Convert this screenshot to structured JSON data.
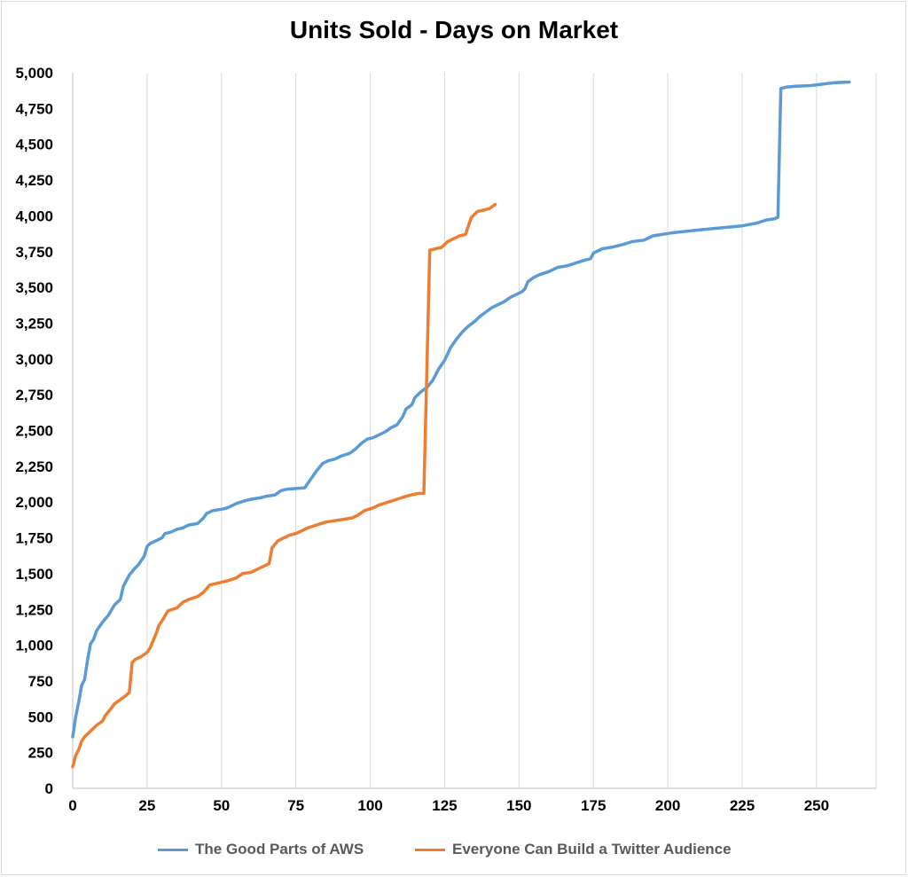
{
  "chart_data": {
    "type": "line",
    "title": "Units Sold - Days on Market",
    "xlabel": "",
    "ylabel": "",
    "xlim": [
      0,
      270
    ],
    "ylim": [
      0,
      5000
    ],
    "x_ticks": [
      "0",
      "25",
      "50",
      "75",
      "100",
      "125",
      "150",
      "175",
      "200",
      "225",
      "250"
    ],
    "y_ticks": [
      "0",
      "250",
      "500",
      "750",
      "1,000",
      "1,250",
      "1,500",
      "1,750",
      "2,000",
      "2,250",
      "2,500",
      "2,750",
      "3,000",
      "3,250",
      "3,500",
      "3,750",
      "4,000",
      "4,250",
      "4,500",
      "4,750",
      "5,000"
    ],
    "grid": "vertical",
    "legend": "bottom",
    "series": [
      {
        "name": "The Good Parts of AWS",
        "color": "#5b9bd5",
        "points": [
          [
            0,
            360
          ],
          [
            1,
            500
          ],
          [
            2,
            600
          ],
          [
            3,
            720
          ],
          [
            4,
            760
          ],
          [
            5,
            900
          ],
          [
            6,
            1010
          ],
          [
            7,
            1040
          ],
          [
            8,
            1100
          ],
          [
            10,
            1160
          ],
          [
            12,
            1210
          ],
          [
            14,
            1280
          ],
          [
            16,
            1320
          ],
          [
            17,
            1410
          ],
          [
            19,
            1490
          ],
          [
            21,
            1540
          ],
          [
            22,
            1560
          ],
          [
            24,
            1620
          ],
          [
            25,
            1690
          ],
          [
            26,
            1710
          ],
          [
            28,
            1730
          ],
          [
            30,
            1750
          ],
          [
            31,
            1780
          ],
          [
            33,
            1790
          ],
          [
            35,
            1810
          ],
          [
            37,
            1820
          ],
          [
            39,
            1840
          ],
          [
            42,
            1850
          ],
          [
            44,
            1890
          ],
          [
            45,
            1920
          ],
          [
            47,
            1940
          ],
          [
            50,
            1950
          ],
          [
            52,
            1960
          ],
          [
            55,
            1990
          ],
          [
            58,
            2010
          ],
          [
            60,
            2020
          ],
          [
            63,
            2030
          ],
          [
            65,
            2040
          ],
          [
            68,
            2050
          ],
          [
            70,
            2080
          ],
          [
            72,
            2090
          ],
          [
            75,
            2095
          ],
          [
            78,
            2100
          ],
          [
            80,
            2160
          ],
          [
            82,
            2220
          ],
          [
            84,
            2270
          ],
          [
            86,
            2290
          ],
          [
            88,
            2300
          ],
          [
            90,
            2320
          ],
          [
            93,
            2340
          ],
          [
            95,
            2370
          ],
          [
            97,
            2410
          ],
          [
            99,
            2440
          ],
          [
            101,
            2450
          ],
          [
            103,
            2470
          ],
          [
            105,
            2490
          ],
          [
            107,
            2520
          ],
          [
            109,
            2540
          ],
          [
            111,
            2600
          ],
          [
            112,
            2650
          ],
          [
            114,
            2680
          ],
          [
            115,
            2730
          ],
          [
            117,
            2770
          ],
          [
            119,
            2800
          ],
          [
            121,
            2850
          ],
          [
            123,
            2930
          ],
          [
            125,
            2990
          ],
          [
            127,
            3080
          ],
          [
            129,
            3140
          ],
          [
            131,
            3190
          ],
          [
            133,
            3230
          ],
          [
            135,
            3260
          ],
          [
            137,
            3300
          ],
          [
            139,
            3330
          ],
          [
            141,
            3360
          ],
          [
            143,
            3380
          ],
          [
            145,
            3400
          ],
          [
            147,
            3430
          ],
          [
            149,
            3450
          ],
          [
            151,
            3470
          ],
          [
            152,
            3490
          ],
          [
            153,
            3540
          ],
          [
            155,
            3570
          ],
          [
            157,
            3590
          ],
          [
            160,
            3610
          ],
          [
            163,
            3640
          ],
          [
            166,
            3650
          ],
          [
            169,
            3670
          ],
          [
            172,
            3690
          ],
          [
            174,
            3700
          ],
          [
            175,
            3740
          ],
          [
            178,
            3770
          ],
          [
            181,
            3780
          ],
          [
            185,
            3800
          ],
          [
            188,
            3820
          ],
          [
            192,
            3830
          ],
          [
            195,
            3860
          ],
          [
            198,
            3870
          ],
          [
            201,
            3880
          ],
          [
            205,
            3890
          ],
          [
            210,
            3900
          ],
          [
            215,
            3910
          ],
          [
            220,
            3920
          ],
          [
            225,
            3930
          ],
          [
            230,
            3950
          ],
          [
            233,
            3970
          ],
          [
            236,
            3980
          ],
          [
            237,
            3990
          ],
          [
            238,
            4890
          ],
          [
            240,
            4900
          ],
          [
            243,
            4905
          ],
          [
            248,
            4910
          ],
          [
            252,
            4920
          ],
          [
            256,
            4930
          ],
          [
            261,
            4935
          ]
        ]
      },
      {
        "name": "Everyone Can Build a Twitter Audience",
        "color": "#ed7d31",
        "points": [
          [
            0,
            150
          ],
          [
            1,
            230
          ],
          [
            2,
            270
          ],
          [
            3,
            330
          ],
          [
            4,
            360
          ],
          [
            6,
            400
          ],
          [
            8,
            440
          ],
          [
            10,
            470
          ],
          [
            11,
            510
          ],
          [
            13,
            560
          ],
          [
            14,
            590
          ],
          [
            16,
            620
          ],
          [
            18,
            650
          ],
          [
            19,
            670
          ],
          [
            20,
            880
          ],
          [
            21,
            900
          ],
          [
            23,
            920
          ],
          [
            25,
            950
          ],
          [
            26,
            980
          ],
          [
            28,
            1080
          ],
          [
            29,
            1140
          ],
          [
            30,
            1170
          ],
          [
            32,
            1240
          ],
          [
            35,
            1260
          ],
          [
            37,
            1300
          ],
          [
            39,
            1320
          ],
          [
            42,
            1340
          ],
          [
            44,
            1370
          ],
          [
            46,
            1420
          ],
          [
            48,
            1430
          ],
          [
            50,
            1440
          ],
          [
            52,
            1450
          ],
          [
            55,
            1470
          ],
          [
            57,
            1500
          ],
          [
            60,
            1510
          ],
          [
            63,
            1540
          ],
          [
            66,
            1570
          ],
          [
            67,
            1680
          ],
          [
            69,
            1730
          ],
          [
            71,
            1750
          ],
          [
            73,
            1770
          ],
          [
            75,
            1780
          ],
          [
            77,
            1800
          ],
          [
            79,
            1820
          ],
          [
            82,
            1840
          ],
          [
            85,
            1860
          ],
          [
            88,
            1870
          ],
          [
            91,
            1880
          ],
          [
            94,
            1890
          ],
          [
            96,
            1910
          ],
          [
            98,
            1940
          ],
          [
            101,
            1960
          ],
          [
            103,
            1980
          ],
          [
            106,
            2000
          ],
          [
            109,
            2020
          ],
          [
            112,
            2040
          ],
          [
            114,
            2050
          ],
          [
            116,
            2060
          ],
          [
            118,
            2060
          ],
          [
            120,
            3760
          ],
          [
            122,
            3770
          ],
          [
            124,
            3780
          ],
          [
            126,
            3820
          ],
          [
            128,
            3840
          ],
          [
            130,
            3860
          ],
          [
            132,
            3870
          ],
          [
            133,
            3930
          ],
          [
            134,
            3990
          ],
          [
            136,
            4030
          ],
          [
            138,
            4040
          ],
          [
            140,
            4050
          ],
          [
            142,
            4080
          ]
        ]
      }
    ]
  }
}
